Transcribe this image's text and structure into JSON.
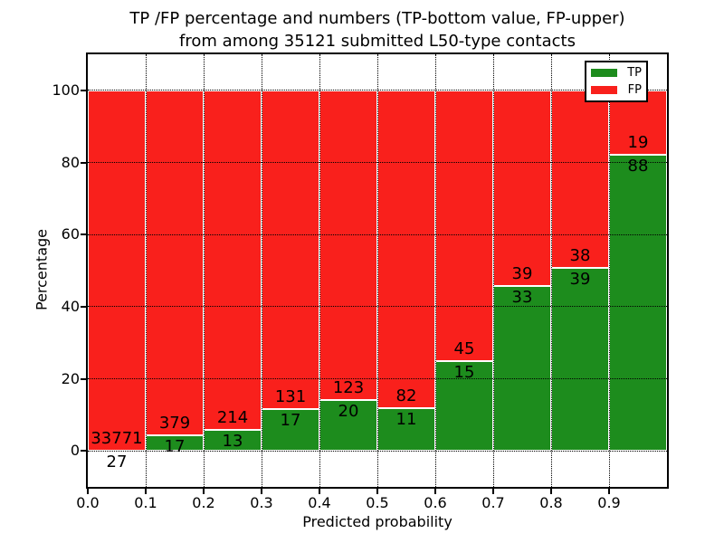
{
  "title": {
    "line1": "TP /FP percentage and numbers (TP-bottom value, FP-upper)",
    "line2": "from among 35121 submitted L50-type contacts"
  },
  "legend": {
    "items": [
      {
        "label": "TP",
        "color": "#1d8c1d"
      },
      {
        "label": "FP",
        "color": "#f9201c"
      }
    ]
  },
  "chart_data": {
    "type": "bar",
    "stacked": true,
    "orientation": "vertical",
    "title": "TP /FP percentage and numbers (TP-bottom value, FP-upper) from among 35121 submitted L50-type contacts",
    "xlabel": "Predicted probability",
    "ylabel": "Percentage",
    "xlim": [
      0.0,
      1.0
    ],
    "ylim": [
      -10,
      110
    ],
    "grid": true,
    "legend_position": "upper right",
    "total_contacts": 35121,
    "bin_width": 0.1,
    "bin_starts": [
      0.0,
      0.1,
      0.2,
      0.3,
      0.4,
      0.5,
      0.6,
      0.7,
      0.8,
      0.9
    ],
    "xtick_labels": [
      "0.0",
      "0.1",
      "0.2",
      "0.3",
      "0.4",
      "0.5",
      "0.6",
      "0.7",
      "0.8",
      "0.9"
    ],
    "ytick_values": [
      0,
      20,
      40,
      60,
      80,
      100
    ],
    "series": [
      {
        "name": "TP",
        "color": "#1d8c1d",
        "counts": [
          27,
          17,
          13,
          17,
          20,
          11,
          15,
          33,
          39,
          88
        ],
        "percent": [
          0.08,
          4.29,
          5.73,
          11.49,
          13.99,
          11.83,
          25.0,
          45.83,
          50.65,
          82.24
        ]
      },
      {
        "name": "FP",
        "color": "#f9201c",
        "counts": [
          33771,
          379,
          214,
          131,
          123,
          82,
          45,
          39,
          38,
          19
        ],
        "percent": [
          99.92,
          95.71,
          94.27,
          88.51,
          86.01,
          88.17,
          75.0,
          54.17,
          49.35,
          17.76
        ]
      }
    ]
  }
}
